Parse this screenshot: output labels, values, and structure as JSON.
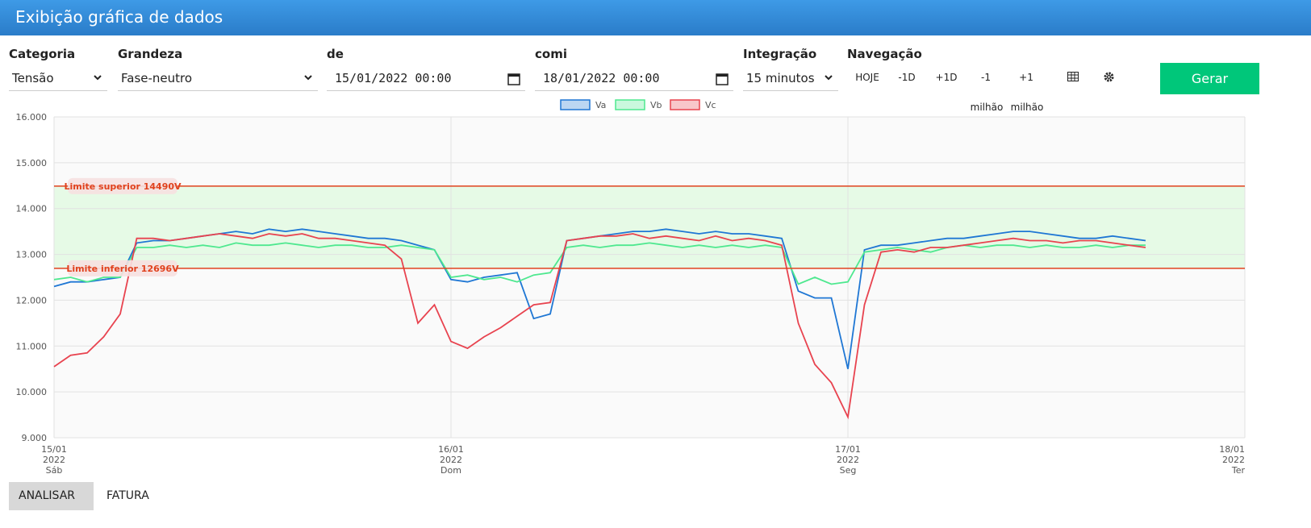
{
  "header": {
    "title": "Exibição gráfica de dados"
  },
  "controls": [
    {
      "label": "Categoria",
      "value": "Tensão"
    },
    {
      "label": "Grandeza",
      "value": "Fase-neutro"
    },
    {
      "label": "de",
      "value": "15/01/2022 00:00"
    },
    {
      "label": "comi",
      "value": "18/01/2022 00:00"
    },
    {
      "label": "Integração",
      "value": "15 minutos"
    }
  ],
  "navigation": {
    "label": "Navegação",
    "buttons": [
      {
        "text": "HOJE"
      },
      {
        "text": "-1D"
      },
      {
        "text": "+1D"
      },
      {
        "text": "-1",
        "sub": "milhão"
      },
      {
        "text": "+1",
        "sub": "milhão"
      }
    ]
  },
  "generate_button": "Gerar",
  "tabs": [
    "ANALISAR",
    "FATURA"
  ],
  "chart_data": {
    "type": "line",
    "x": [
      0,
      1,
      2,
      3,
      4,
      5,
      6,
      7,
      8,
      9,
      10,
      11,
      12,
      13,
      14,
      15,
      16,
      17,
      18,
      19,
      20,
      21,
      22,
      23,
      24,
      25,
      26,
      27,
      28,
      29,
      30,
      31,
      32,
      33,
      34,
      35,
      36,
      37,
      38,
      39,
      40,
      41,
      42,
      43,
      44,
      45,
      46,
      47,
      48,
      49,
      50,
      51,
      52,
      53,
      54,
      55,
      56,
      57,
      58,
      59,
      60,
      61,
      62,
      63,
      64,
      65,
      66
    ],
    "series": [
      {
        "name": "Va",
        "color": "#1f77d4",
        "values": [
          12300,
          12400,
          12400,
          12450,
          12500,
          13250,
          13300,
          13300,
          13350,
          13400,
          13450,
          13500,
          13450,
          13550,
          13500,
          13550,
          13500,
          13450,
          13400,
          13350,
          13350,
          13300,
          13200,
          13100,
          12450,
          12400,
          12500,
          12550,
          12600,
          11600,
          11700,
          13300,
          13350,
          13400,
          13450,
          13500,
          13500,
          13550,
          13500,
          13450,
          13500,
          13450,
          13450,
          13400,
          13350,
          12200,
          12050,
          12050,
          10500,
          13100,
          13200,
          13200,
          13250,
          13300,
          13350,
          13350,
          13400,
          13450,
          13500,
          13500,
          13450,
          13400,
          13350,
          13350,
          13400,
          13350,
          13300
        ]
      },
      {
        "name": "Vb",
        "color": "#4ee88f",
        "values": [
          12450,
          12500,
          12400,
          12500,
          12500,
          13150,
          13150,
          13200,
          13150,
          13200,
          13150,
          13250,
          13200,
          13200,
          13250,
          13200,
          13150,
          13200,
          13200,
          13150,
          13150,
          13200,
          13150,
          13100,
          12500,
          12550,
          12450,
          12500,
          12400,
          12550,
          12600,
          13150,
          13200,
          13150,
          13200,
          13200,
          13250,
          13200,
          13150,
          13200,
          13150,
          13200,
          13150,
          13200,
          13150,
          12350,
          12500,
          12350,
          12400,
          13050,
          13100,
          13150,
          13100,
          13050,
          13150,
          13200,
          13150,
          13200,
          13200,
          13150,
          13200,
          13150,
          13150,
          13200,
          13150,
          13200,
          13200
        ]
      },
      {
        "name": "Vc",
        "color": "#e8434f",
        "values": [
          10550,
          10800,
          10850,
          11200,
          11700,
          13350,
          13350,
          13300,
          13350,
          13400,
          13450,
          13400,
          13350,
          13450,
          13400,
          13450,
          13350,
          13350,
          13300,
          13250,
          13200,
          12900,
          11500,
          11900,
          11100,
          10950,
          11200,
          11400,
          11650,
          11900,
          11950,
          13300,
          13350,
          13400,
          13400,
          13450,
          13350,
          13400,
          13350,
          13300,
          13400,
          13300,
          13350,
          13300,
          13200,
          11500,
          10600,
          10200,
          9450,
          11900,
          13050,
          13100,
          13050,
          13150,
          13150,
          13200,
          13250,
          13300,
          13350,
          13300,
          13300,
          13250,
          13300,
          13300,
          13250,
          13200,
          13150
        ]
      }
    ],
    "xlim": [
      0,
      72
    ],
    "xticks": [
      {
        "value": 0,
        "label": [
          "15/01",
          "2022",
          "Sáb"
        ]
      },
      {
        "value": 24,
        "label": [
          "16/01",
          "2022",
          "Dom"
        ]
      },
      {
        "value": 48,
        "label": [
          "17/01",
          "2022",
          "Seg"
        ]
      },
      {
        "value": 72,
        "label": [
          "18/01",
          "2022",
          "Ter"
        ]
      }
    ],
    "ylim": [
      9000,
      16000
    ],
    "yticks": [
      {
        "value": 9000,
        "label": "9.000"
      },
      {
        "value": 10000,
        "label": "10.000"
      },
      {
        "value": 11000,
        "label": "11.000"
      },
      {
        "value": 12000,
        "label": "12.000"
      },
      {
        "value": 13000,
        "label": "13.000"
      },
      {
        "value": 14000,
        "label": "14.000"
      },
      {
        "value": 15000,
        "label": "15.000"
      },
      {
        "value": 16000,
        "label": "16.000"
      }
    ],
    "grid": true,
    "legend": "top",
    "limits": [
      {
        "label": "Limite superior 14490V",
        "value": 14490
      },
      {
        "label": "Limite inferior 12696V",
        "value": 12696
      }
    ],
    "limit_color": "#e0421e",
    "band_color": "#e6fae6"
  }
}
